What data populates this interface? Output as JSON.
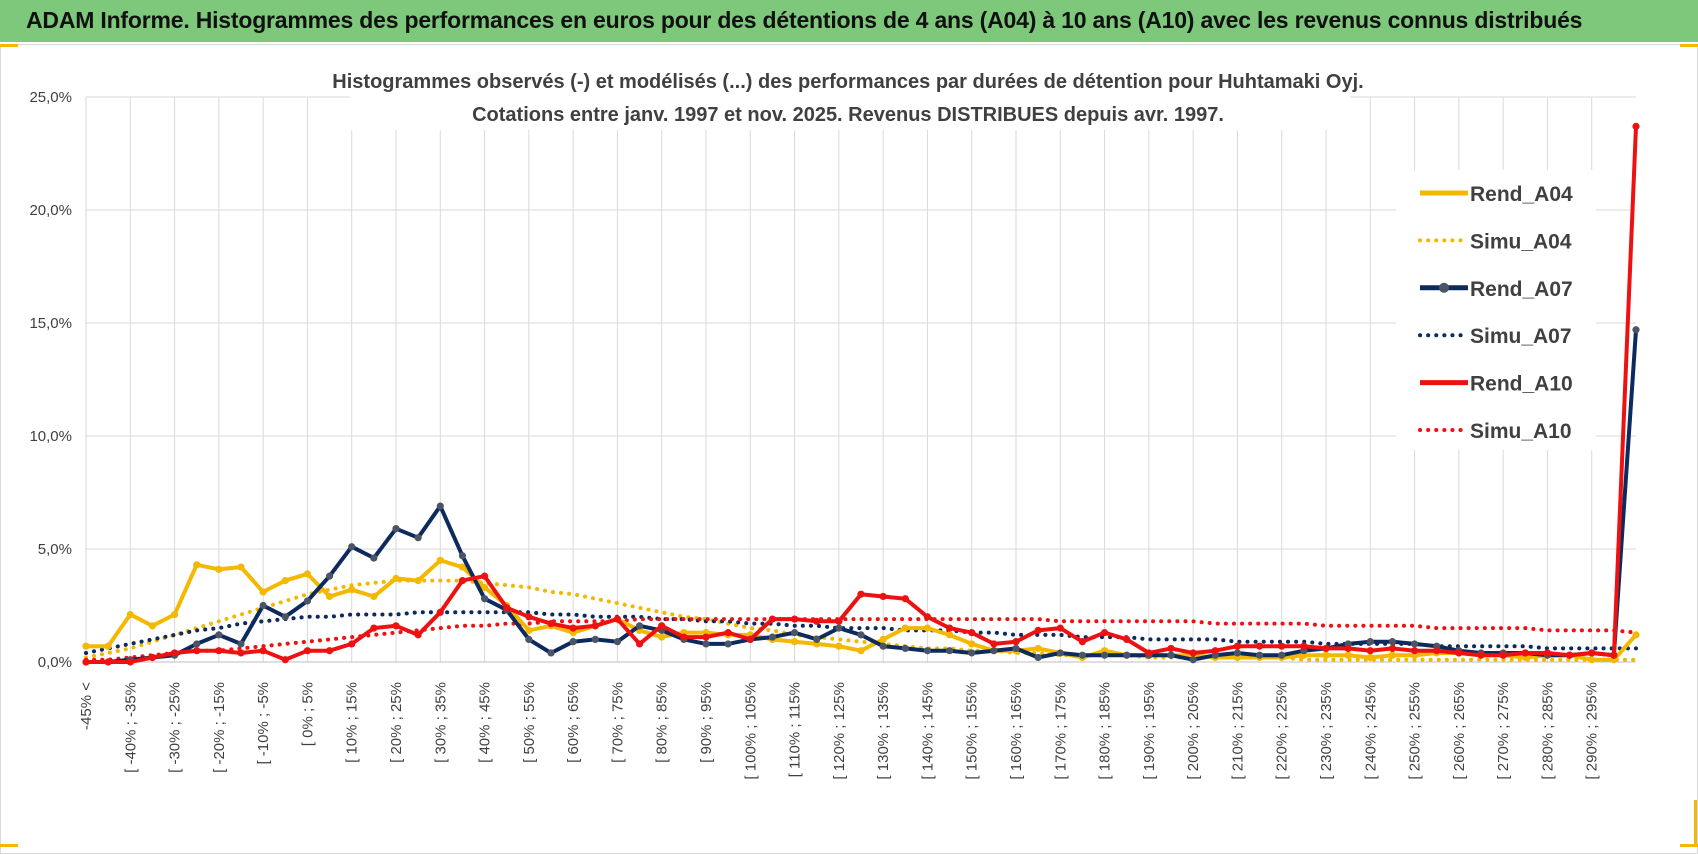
{
  "header": {
    "title": "ADAM Informe. Histogrammes des performances en euros pour des détentions de 4 ans (A04) à 10 ans (A10) avec les revenus connus distribués"
  },
  "colors": {
    "banner": "#7dc87a",
    "A04": "#f5b800",
    "A07": "#0d2a5e",
    "A07_marker": "#4a5566",
    "A10": "#ee1111",
    "grid": "#d9d9d9",
    "text": "#404040"
  },
  "chart_data": {
    "type": "line",
    "title_line1": "Histogrammes observés (-) et modélisés (...) des performances par durées de détention pour Huhtamaki Oyj.",
    "title_line2": "Cotations entre janv. 1997 et nov. 2025. Revenus DISTRIBUES depuis avr. 1997.",
    "ylim": [
      0,
      25
    ],
    "yticks": [
      0,
      5,
      10,
      15,
      20,
      25
    ],
    "ytick_labels": [
      "0,0%",
      "5,0%",
      "10,0%",
      "15,0%",
      "20,0%",
      "25,0%"
    ],
    "x_tick_labels": [
      "-45% <",
      "[ -40% ; -35%",
      "[ -30% ; -25%",
      "[ -20% ; -15%",
      "[ -10% ; -5%",
      "[ 0% ; 5%",
      "[ 10% ; 15%",
      "[ 20% ; 25%",
      "[ 30% ; 35%",
      "[ 40% ; 45%",
      "[ 50% ; 55%",
      "[ 60% ; 65%",
      "[ 70% ; 75%",
      "[ 80% ; 85%",
      "[ 90% ; 95%",
      "[ 100% ; 105%",
      "[ 110% ; 115%",
      "[ 120% ; 125%",
      "[ 130% ; 135%",
      "[ 140% ; 145%",
      "[ 150% ; 155%",
      "[ 160% ; 165%",
      "[ 170% ; 175%",
      "[ 180% ; 185%",
      "[ 190% ; 195%",
      "[ 200% ; 205%",
      "[ 210% ; 215%",
      "[ 220% ; 225%",
      "[ 230% ; 235%",
      "[ 240% ; 245%",
      "[ 250% ; 255%",
      "[ 260% ; 265%",
      "[ 270% ; 275%",
      "[ 280% ; 285%",
      "[ 290% ; 295%"
    ],
    "n_categories": 71,
    "series": [
      {
        "name": "Rend_A04",
        "style": "solid",
        "color": "#f5b800",
        "values": [
          0.7,
          0.7,
          2.1,
          1.6,
          2.1,
          4.3,
          4.1,
          4.2,
          3.1,
          3.6,
          3.9,
          2.9,
          3.2,
          2.9,
          3.7,
          3.6,
          4.5,
          4.2,
          3.3,
          2.5,
          1.4,
          1.6,
          1.3,
          1.6,
          1.9,
          1.4,
          1.1,
          1.3,
          1.3,
          1.2,
          1.2,
          1.0,
          0.9,
          0.8,
          0.7,
          0.5,
          1.0,
          1.5,
          1.5,
          1.2,
          0.8,
          0.5,
          0.5,
          0.6,
          0.4,
          0.2,
          0.5,
          0.3,
          0.3,
          0.3,
          0.3,
          0.2,
          0.2,
          0.2,
          0.2,
          0.3,
          0.3,
          0.3,
          0.2,
          0.3,
          0.3,
          0.4,
          0.4,
          0.3,
          0.3,
          0.2,
          0.3,
          0.3,
          0.1,
          0.1,
          1.2
        ]
      },
      {
        "name": "Simu_A04",
        "style": "dotted",
        "color": "#f5b800",
        "values": [
          0.2,
          0.4,
          0.6,
          0.9,
          1.2,
          1.5,
          1.8,
          2.1,
          2.4,
          2.7,
          3.0,
          3.2,
          3.4,
          3.5,
          3.6,
          3.6,
          3.6,
          3.6,
          3.5,
          3.4,
          3.3,
          3.1,
          3.0,
          2.8,
          2.6,
          2.4,
          2.2,
          2.0,
          1.9,
          1.7,
          1.5,
          1.4,
          1.2,
          1.1,
          1.0,
          0.9,
          0.8,
          0.7,
          0.6,
          0.6,
          0.5,
          0.5,
          0.4,
          0.4,
          0.3,
          0.3,
          0.3,
          0.3,
          0.2,
          0.2,
          0.2,
          0.2,
          0.2,
          0.2,
          0.2,
          0.1,
          0.1,
          0.1,
          0.1,
          0.1,
          0.1,
          0.1,
          0.1,
          0.1,
          0.1,
          0.1,
          0.1,
          0.1,
          0.1,
          0.1,
          0.1
        ]
      },
      {
        "name": "Rend_A07",
        "style": "solid",
        "color": "#0d2a5e",
        "values": [
          0.0,
          0.0,
          0.1,
          0.2,
          0.3,
          0.8,
          1.2,
          0.8,
          2.5,
          2.0,
          2.7,
          3.8,
          5.1,
          4.6,
          5.9,
          5.5,
          6.9,
          4.7,
          2.8,
          2.3,
          1.0,
          0.4,
          0.9,
          1.0,
          0.9,
          1.6,
          1.4,
          1.0,
          0.8,
          0.8,
          1.0,
          1.1,
          1.3,
          1.0,
          1.5,
          1.2,
          0.7,
          0.6,
          0.5,
          0.5,
          0.4,
          0.5,
          0.6,
          0.2,
          0.4,
          0.3,
          0.3,
          0.3,
          0.3,
          0.3,
          0.1,
          0.3,
          0.4,
          0.3,
          0.3,
          0.5,
          0.6,
          0.8,
          0.9,
          0.9,
          0.8,
          0.7,
          0.5,
          0.4,
          0.4,
          0.4,
          0.3,
          0.3,
          0.4,
          0.3,
          14.7
        ]
      },
      {
        "name": "Simu_A07",
        "style": "dotted",
        "color": "#0d2a5e",
        "values": [
          0.4,
          0.6,
          0.8,
          1.0,
          1.2,
          1.4,
          1.5,
          1.7,
          1.8,
          1.9,
          2.0,
          2.0,
          2.1,
          2.1,
          2.1,
          2.2,
          2.2,
          2.2,
          2.2,
          2.2,
          2.2,
          2.1,
          2.1,
          2.0,
          2.0,
          2.0,
          1.9,
          1.9,
          1.8,
          1.8,
          1.7,
          1.7,
          1.6,
          1.6,
          1.5,
          1.5,
          1.5,
          1.4,
          1.4,
          1.4,
          1.3,
          1.3,
          1.2,
          1.2,
          1.2,
          1.1,
          1.1,
          1.1,
          1.0,
          1.0,
          1.0,
          1.0,
          0.9,
          0.9,
          0.9,
          0.9,
          0.8,
          0.8,
          0.8,
          0.8,
          0.8,
          0.7,
          0.7,
          0.7,
          0.7,
          0.7,
          0.6,
          0.6,
          0.6,
          0.6,
          0.6
        ]
      },
      {
        "name": "Rend_A10",
        "style": "solid",
        "color": "#ee1111",
        "values": [
          0.0,
          0.0,
          0.0,
          0.2,
          0.4,
          0.5,
          0.5,
          0.4,
          0.5,
          0.1,
          0.5,
          0.5,
          0.8,
          1.5,
          1.6,
          1.2,
          2.2,
          3.6,
          3.8,
          2.4,
          2.0,
          1.7,
          1.5,
          1.6,
          1.9,
          0.8,
          1.6,
          1.1,
          1.1,
          1.3,
          1.0,
          1.9,
          1.9,
          1.8,
          1.8,
          3.0,
          2.9,
          2.8,
          2.0,
          1.5,
          1.3,
          0.8,
          0.9,
          1.4,
          1.5,
          0.9,
          1.3,
          1.0,
          0.4,
          0.6,
          0.4,
          0.5,
          0.7,
          0.7,
          0.7,
          0.7,
          0.6,
          0.6,
          0.5,
          0.6,
          0.5,
          0.5,
          0.4,
          0.3,
          0.3,
          0.4,
          0.4,
          0.3,
          0.4,
          0.3,
          23.7
        ]
      },
      {
        "name": "Simu_A10",
        "style": "dotted",
        "color": "#ee1111",
        "values": [
          0.1,
          0.1,
          0.2,
          0.3,
          0.4,
          0.5,
          0.5,
          0.6,
          0.7,
          0.8,
          0.9,
          1.0,
          1.1,
          1.2,
          1.3,
          1.4,
          1.5,
          1.6,
          1.6,
          1.7,
          1.7,
          1.8,
          1.8,
          1.8,
          1.8,
          1.9,
          1.9,
          1.9,
          1.9,
          1.9,
          1.9,
          1.9,
          1.9,
          1.9,
          1.9,
          1.9,
          1.9,
          1.9,
          1.9,
          1.9,
          1.9,
          1.9,
          1.9,
          1.9,
          1.8,
          1.8,
          1.8,
          1.8,
          1.8,
          1.8,
          1.8,
          1.7,
          1.7,
          1.7,
          1.7,
          1.7,
          1.6,
          1.6,
          1.6,
          1.6,
          1.6,
          1.5,
          1.5,
          1.5,
          1.5,
          1.5,
          1.4,
          1.4,
          1.4,
          1.4,
          1.3
        ]
      }
    ],
    "legend": [
      "Rend_A04",
      "Simu_A04",
      "Rend_A07",
      "Simu_A07",
      "Rend_A10",
      "Simu_A10"
    ],
    "legend_position": "right",
    "grid": true
  }
}
